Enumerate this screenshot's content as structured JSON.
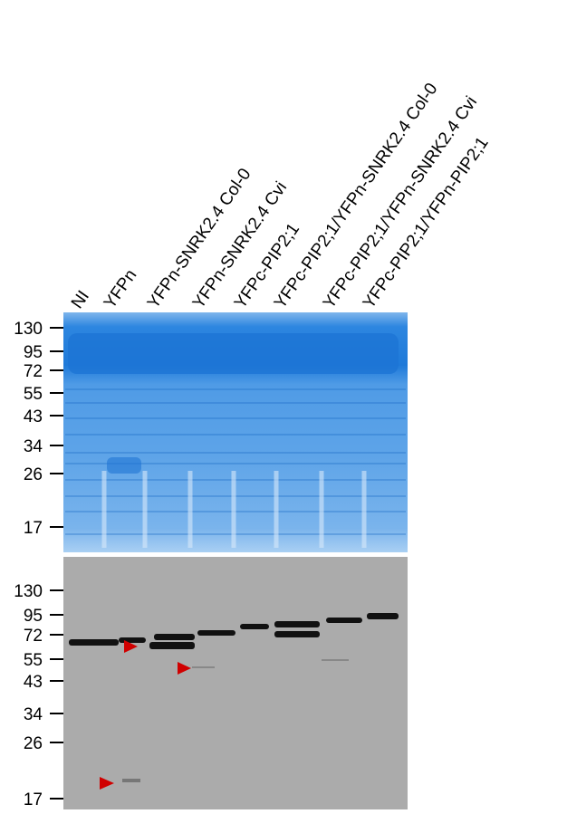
{
  "lanes": [
    "NI",
    "YFPn",
    "YFPn-SNRK2.4 Col-0",
    "YFPn-SNRK2.4 Cvi",
    "YFPc-PIP2;1",
    "YFPc-PIP2;1/YFPn-SNRK2.4 Col-0",
    "YFPc-PIP2;1/YFPn-SNRK2.4 Cvi",
    "YFPc-PIP2;1/YFPn-PIP2;1"
  ],
  "top_panel": {
    "markers": [
      "130",
      "95",
      "72",
      "55",
      "43",
      "34",
      "26",
      "17"
    ]
  },
  "bottom_panel": {
    "markers": [
      "130",
      "95",
      "72",
      "55",
      "43",
      "34",
      "26",
      "17"
    ]
  }
}
